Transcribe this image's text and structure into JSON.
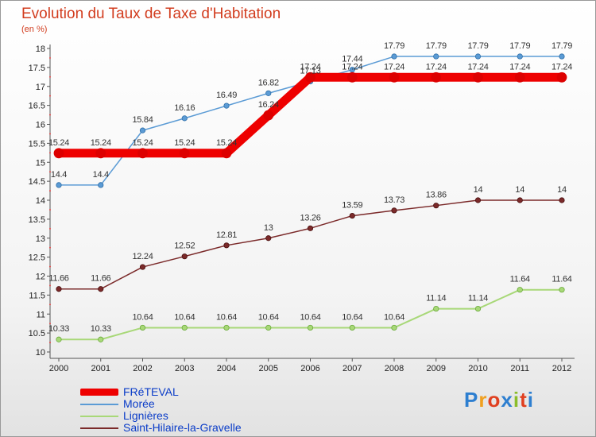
{
  "header": {
    "title": "Evolution du Taux de Taxe d'Habitation",
    "subtitle": "(en %)"
  },
  "logo": {
    "letters": [
      "P",
      "r",
      "o",
      "x",
      "i",
      "t",
      "i"
    ],
    "colors": [
      "#2e7fd0",
      "#f0a020",
      "#e04020",
      "#2e7fd0",
      "#8bbd2a",
      "#e04020",
      "#2e7fd0"
    ]
  },
  "chart_data": {
    "type": "line",
    "title": "Evolution du Taux de Taxe d'Habitation",
    "subtitle": "(en %)",
    "x": [
      "2000",
      "2001",
      "2002",
      "2003",
      "2004",
      "2005",
      "2006",
      "2007",
      "2008",
      "2009",
      "2010",
      "2011",
      "2012"
    ],
    "ylim": [
      10,
      18
    ],
    "yticks": [
      "10",
      "10.5",
      "11",
      "11.5",
      "12",
      "12.5",
      "13",
      "13.5",
      "14",
      "14.5",
      "15",
      "15.5",
      "16",
      "16.5",
      "17",
      "17.5",
      "18"
    ],
    "grid": false,
    "legend": "bottom-left",
    "series": [
      {
        "name": "FRéTEVAL",
        "color": "#ee0000",
        "values": [
          15.24,
          15.24,
          15.24,
          15.24,
          15.24,
          16.24,
          17.24,
          17.24,
          17.24,
          17.24,
          17.24,
          17.24,
          17.24
        ],
        "labels": [
          "15.24",
          "15.24",
          "15.24",
          "15.24",
          "15.24",
          "16.24",
          "17.24",
          "17.24",
          "17.24",
          "17.24",
          "17.24",
          "17.24",
          "17.24"
        ]
      },
      {
        "name": "Morée",
        "color": "#5b9bd5",
        "values": [
          14.4,
          14.4,
          15.84,
          16.16,
          16.49,
          16.82,
          17.13,
          17.44,
          17.79,
          17.79,
          17.79,
          17.79,
          17.79
        ],
        "labels": [
          "14.4",
          "14.4",
          "15.84",
          "16.16",
          "16.49",
          "16.82",
          "17.13",
          "17.44",
          "17.79",
          "17.79",
          "17.79",
          "17.79",
          "17.79"
        ]
      },
      {
        "name": "Lignières",
        "color": "#a8d878",
        "values": [
          10.33,
          10.33,
          10.64,
          10.64,
          10.64,
          10.64,
          10.64,
          10.64,
          10.64,
          11.14,
          11.14,
          11.64,
          11.64
        ],
        "labels": [
          "10.33",
          "10.33",
          "10.64",
          "10.64",
          "10.64",
          "10.64",
          "10.64",
          "10.64",
          "10.64",
          "11.14",
          "11.14",
          "11.64",
          "11.64"
        ]
      },
      {
        "name": "Saint-Hilaire-la-Gravelle",
        "color": "#7b2a2a",
        "values": [
          11.66,
          11.66,
          12.24,
          12.52,
          12.81,
          13.0,
          13.26,
          13.59,
          13.73,
          13.86,
          14.0,
          14.0,
          14.0
        ],
        "labels": [
          "11.66",
          "11.66",
          "12.24",
          "12.52",
          "12.81",
          "13",
          "13.26",
          "13.59",
          "13.73",
          "13.86",
          "14",
          "14",
          "14"
        ]
      }
    ]
  }
}
